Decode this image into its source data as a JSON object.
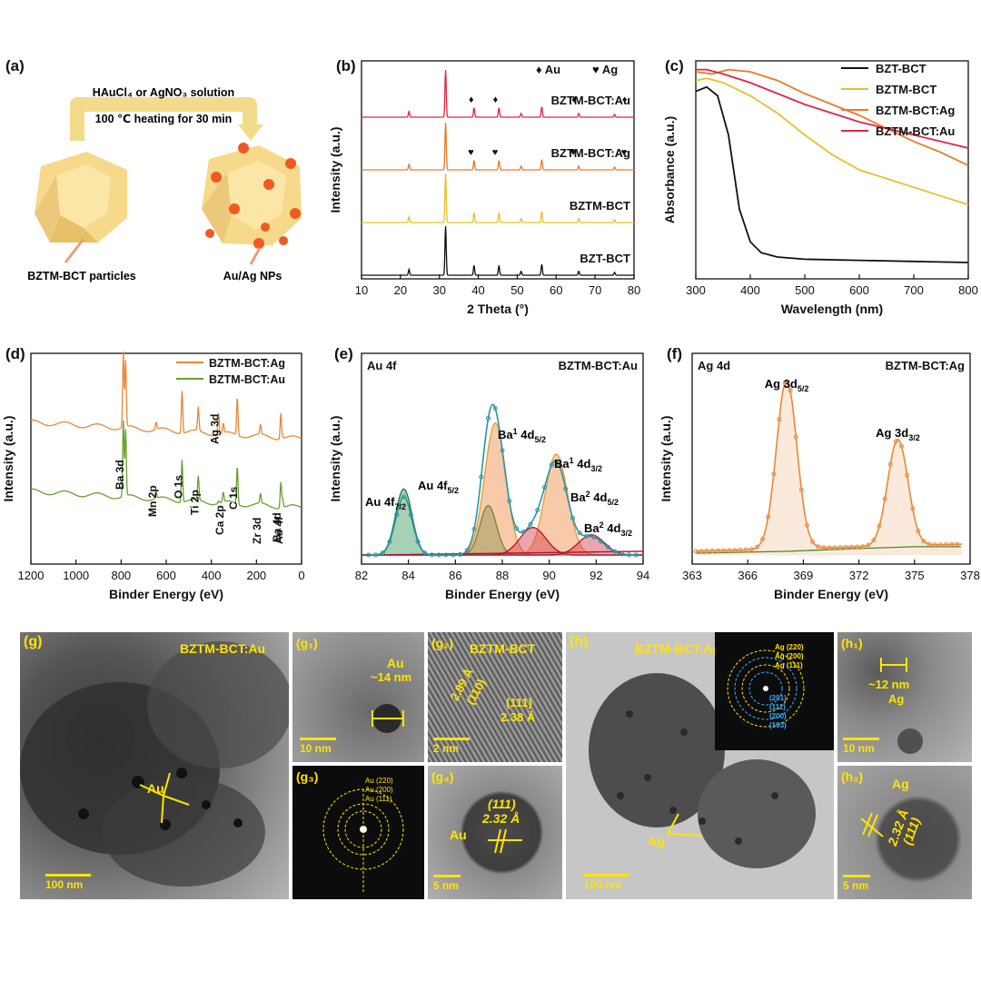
{
  "panel_a": {
    "label": "(a)",
    "solution": "HAuCl₄ or AgNO₃ solution",
    "heating": "100 ℃ heating for 30 min",
    "particles": "BZTM-BCT particles",
    "nps": "Au/Ag NPs"
  },
  "panel_b": {
    "label": "(b)",
    "legend_au": "♦ Au",
    "legend_ag": "♥ Ag"
  },
  "panel_c": {
    "label": "(c)"
  },
  "panel_d": {
    "label": "(d)"
  },
  "panel_e": {
    "label": "(e)"
  },
  "panel_f": {
    "label": "(f)"
  },
  "panel_g": {
    "label": "(g)",
    "sample": "BZTM-BCT:Au",
    "np": "Au",
    "scale": "100 nm",
    "g1": {
      "label": "(g₁)",
      "np": "Au",
      "size": "~14 nm",
      "scale": "10 nm"
    },
    "g2": {
      "label": "(g₂)",
      "sample": "BZTM-BCT",
      "d1": "2.89 Å",
      "hkl1": "(110)",
      "hkl2": "(111)",
      "d2": "2.38 Å",
      "scale": "2 nm"
    },
    "g3": {
      "label": "(g₃)",
      "r1": "Au (220)",
      "r2": "Au (200)",
      "r3": "Au (111)"
    },
    "g4": {
      "label": "(g₄)",
      "np": "Au",
      "hkl": "(111)",
      "d": "2.32 Å",
      "scale": "5 nm"
    }
  },
  "panel_h": {
    "label": "(h)",
    "sample": "BZTM-BCT:Ag",
    "np": "Ag",
    "scale": "100 nm",
    "saed_yellow": [
      "Ag (220)",
      "Ag (200)",
      "Ag (111)"
    ],
    "saed_blue": [
      "(201)",
      "(111)",
      "(200)",
      "(103)"
    ],
    "h1": {
      "label": "(h₁)",
      "size": "~12 nm",
      "np": "Ag",
      "scale": "10 nm"
    },
    "h2": {
      "label": "(h₂)",
      "np": "Ag",
      "d": "2.32 Å",
      "hkl": "(111)",
      "scale": "5 nm"
    }
  },
  "colors": {
    "bzt": "#111111",
    "bztm": "#e8c02a",
    "ag": "#e57c2c",
    "au": "#e02648",
    "xps_ag": "#e8883a",
    "xps_au": "#6aa030",
    "fit_envelope": "#2c93a3",
    "au_fill": "#3a9a5a",
    "ba1_fill": "#f08a40",
    "ba2_fill": "#d8394a",
    "baseline": "#1f8a2a",
    "tem_yellow": "#ffe400",
    "saed_blue": "#3ab2ff"
  },
  "chart_data": [
    {
      "id": "b",
      "type": "line",
      "xlabel": "2 Theta (°)",
      "ylabel": "Intensity (a.u.)",
      "xlim": [
        10,
        80
      ],
      "xticks": [
        10,
        20,
        30,
        40,
        50,
        60,
        70,
        80
      ],
      "peaks": [
        22.2,
        31.6,
        38.9,
        45.3,
        51.0,
        56.3,
        65.8,
        75.0
      ],
      "au_markers": [
        38.2,
        44.4,
        64.6,
        77.6
      ],
      "ag_markers": [
        38.1,
        44.3,
        64.4,
        77.4
      ],
      "series": [
        {
          "name": "BZTM-BCT:Au"
        },
        {
          "name": "BZTM-BCT:Ag"
        },
        {
          "name": "BZTM-BCT"
        },
        {
          "name": "BZT-BCT"
        }
      ]
    },
    {
      "id": "c",
      "type": "line",
      "xlabel": "Wavelength (nm)",
      "ylabel": "Absorbance (a.u.)",
      "xlim": [
        300,
        800
      ],
      "xticks": [
        300,
        400,
        500,
        600,
        700,
        800
      ],
      "legend_position": "top-right",
      "series": [
        {
          "name": "BZT-BCT",
          "x": [
            300,
            320,
            340,
            360,
            380,
            400,
            420,
            450,
            500,
            600,
            700,
            800
          ],
          "y": [
            0.86,
            0.88,
            0.84,
            0.66,
            0.32,
            0.17,
            0.12,
            0.1,
            0.09,
            0.085,
            0.08,
            0.075
          ]
        },
        {
          "name": "BZTM-BCT",
          "x": [
            300,
            320,
            350,
            400,
            450,
            500,
            550,
            600,
            650,
            700,
            750,
            800
          ],
          "y": [
            0.91,
            0.92,
            0.9,
            0.84,
            0.76,
            0.66,
            0.57,
            0.5,
            0.46,
            0.42,
            0.38,
            0.34
          ]
        },
        {
          "name": "BZTM-BCT:Ag",
          "x": [
            300,
            330,
            360,
            400,
            450,
            500,
            550,
            600,
            650,
            700,
            750,
            800
          ],
          "y": [
            0.95,
            0.94,
            0.96,
            0.95,
            0.91,
            0.85,
            0.8,
            0.75,
            0.69,
            0.63,
            0.58,
            0.52
          ]
        },
        {
          "name": "BZTM-BCT:Au",
          "x": [
            300,
            320,
            350,
            400,
            450,
            500,
            550,
            600,
            650,
            700,
            750,
            800
          ],
          "y": [
            0.96,
            0.96,
            0.94,
            0.9,
            0.85,
            0.8,
            0.76,
            0.72,
            0.69,
            0.66,
            0.63,
            0.6
          ]
        }
      ]
    },
    {
      "id": "d",
      "type": "line",
      "xlabel": "Binder Energy (eV)",
      "ylabel": "Intensity (a.u.)",
      "xlim": [
        1200,
        0
      ],
      "xticks": [
        1200,
        1000,
        800,
        600,
        400,
        200,
        0
      ],
      "series": [
        {
          "name": "BZTM-BCT:Ag"
        },
        {
          "name": "BZTM-BCT:Au"
        }
      ],
      "annotations": [
        {
          "text": "Ba 3d",
          "x": 790
        },
        {
          "text": "Mn 2p",
          "x": 645
        },
        {
          "text": "O 1s",
          "x": 530
        },
        {
          "text": "Ti 2p",
          "x": 458
        },
        {
          "text": "Ag 3d",
          "x": 368
        },
        {
          "text": "Ca 2p",
          "x": 347
        },
        {
          "text": "C 1s",
          "x": 285
        },
        {
          "text": "Zr 3d",
          "x": 182
        },
        {
          "text": "Ba 4d",
          "x": 92
        },
        {
          "text": "Au 4f",
          "x": 84
        }
      ]
    },
    {
      "id": "e",
      "type": "line",
      "title": "Au 4f",
      "sample": "BZTM-BCT:Au",
      "xlabel": "Binder Energy (eV)",
      "ylabel": "Intensity (a.u.)",
      "xlim": [
        82,
        94
      ],
      "xticks": [
        82,
        84,
        86,
        88,
        90,
        92,
        94
      ],
      "components": [
        {
          "name": "Au 4f7/2",
          "center": 83.8,
          "height": 0.36
        },
        {
          "name": "Au 4f5/2",
          "center": 87.4,
          "height": 0.27
        },
        {
          "name": "Ba1 4d5/2",
          "center": 87.7,
          "height": 0.72
        },
        {
          "name": "Ba1 4d3/2",
          "center": 90.3,
          "height": 0.55
        },
        {
          "name": "Ba2 4d5/2",
          "center": 89.3,
          "height": 0.15
        },
        {
          "name": "Ba2 4d3/2",
          "center": 91.8,
          "height": 0.11
        }
      ],
      "labels": [
        "Au 4f",
        "7/2",
        "5/2",
        "Ba",
        "1",
        "4d",
        "3/2",
        "2"
      ]
    },
    {
      "id": "f",
      "type": "line",
      "title": "Ag 4d",
      "sample": "BZTM-BCT:Ag",
      "xlabel": "Binder Energy (eV)",
      "ylabel": "Intensity (a.u.)",
      "xlim": [
        363,
        378
      ],
      "xticks": [
        363,
        366,
        369,
        372,
        375,
        378
      ],
      "components": [
        {
          "name": "Ag 3d5/2",
          "center": 368.1,
          "height": 0.92
        },
        {
          "name": "Ag 3d3/2",
          "center": 374.1,
          "height": 0.58
        }
      ],
      "labels": [
        "Ag 3d",
        "5/2",
        "3/2"
      ]
    }
  ]
}
